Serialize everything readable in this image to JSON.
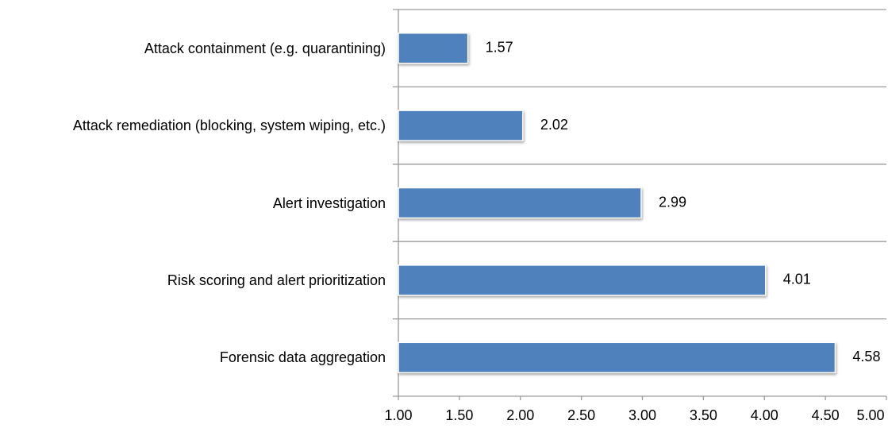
{
  "chart_data": {
    "type": "bar",
    "orientation": "horizontal",
    "categories": [
      "Attack containment (e.g. quarantining)",
      "Attack remediation (blocking, system wiping, etc.)",
      "Alert investigation",
      "Risk scoring and alert prioritization",
      "Forensic data aggregation"
    ],
    "values": [
      1.57,
      2.02,
      2.99,
      4.01,
      4.58
    ],
    "color": "#4f81bd",
    "xlim": [
      1,
      5
    ],
    "xticks": [
      {
        "value": 1,
        "label": "1.00"
      },
      {
        "value": 1.5,
        "label": "1.50"
      },
      {
        "value": 2,
        "label": "2.00"
      },
      {
        "value": 2.5,
        "label": "2.50"
      },
      {
        "value": 3,
        "label": "3.00"
      },
      {
        "value": 3.5,
        "label": "3.50"
      },
      {
        "value": 4,
        "label": "4.00"
      },
      {
        "value": 4.5,
        "label": "4.50"
      },
      {
        "value": 5,
        "label": "5.00"
      }
    ],
    "grid": true
  }
}
